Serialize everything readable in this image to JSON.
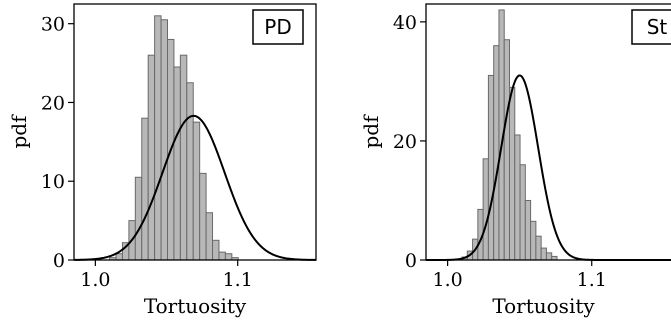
{
  "chart_data": [
    {
      "type": "bar",
      "panel_label": "PD",
      "xlabel": "Tortuosity",
      "ylabel": "pdf",
      "xlim": [
        0.985,
        1.155
      ],
      "ylim": [
        0,
        32.5
      ],
      "xticks": [
        {
          "value": 1.0,
          "label": "1.0"
        },
        {
          "value": 1.1,
          "label": "1.1"
        }
      ],
      "yticks": [
        {
          "value": 0,
          "label": "0"
        },
        {
          "value": 10,
          "label": "10"
        },
        {
          "value": 20,
          "label": "20"
        },
        {
          "value": 30,
          "label": "30"
        }
      ],
      "histogram": {
        "bin_start": 1.01,
        "bin_width": 0.00452,
        "values": [
          0.3,
          0.8,
          2.2,
          5.0,
          10.5,
          18.0,
          26.0,
          31.0,
          30.5,
          28.0,
          24.5,
          26.0,
          22.5,
          17.5,
          11.0,
          6.0,
          2.5,
          1.0,
          0.8,
          0.3
        ],
        "fill": "#b8b8b8",
        "edge": "#6a6a6a"
      },
      "curve": {
        "type": "normal",
        "mean": 1.069,
        "peak": 18.3,
        "color": "#000000"
      }
    },
    {
      "type": "bar",
      "panel_label": "St",
      "xlabel": "Tortuosity",
      "ylabel": "pdf",
      "xlim": [
        0.985,
        1.155
      ],
      "ylim": [
        0,
        43
      ],
      "xticks": [
        {
          "value": 1.0,
          "label": "1.0"
        },
        {
          "value": 1.1,
          "label": "1.1"
        }
      ],
      "yticks": [
        {
          "value": 0,
          "label": "0"
        },
        {
          "value": 20,
          "label": "20"
        },
        {
          "value": 40,
          "label": "40"
        }
      ],
      "histogram": {
        "bin_start": 1.01,
        "bin_width": 0.00366,
        "values": [
          0.5,
          1.5,
          3.5,
          8.5,
          17.0,
          31.0,
          36.0,
          42.0,
          37.0,
          29.0,
          21.0,
          16.0,
          10.0,
          6.5,
          4.0,
          2.0,
          1.2,
          0.6
        ],
        "fill": "#b8b8b8",
        "edge": "#6a6a6a"
      },
      "curve": {
        "type": "normal",
        "mean": 1.05,
        "peak": 31.0,
        "color": "#000000"
      }
    }
  ]
}
